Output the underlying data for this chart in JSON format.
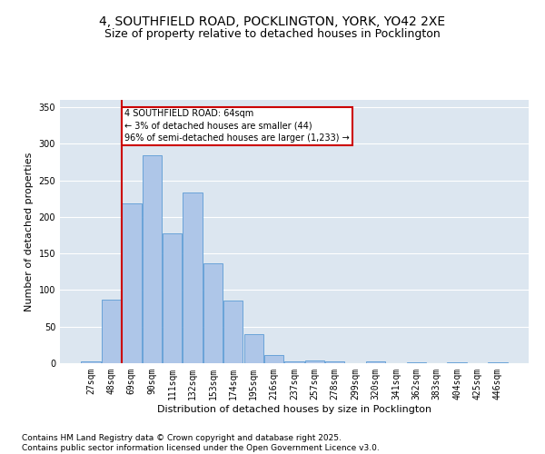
{
  "title_line1": "4, SOUTHFIELD ROAD, POCKLINGTON, YORK, YO42 2XE",
  "title_line2": "Size of property relative to detached houses in Pocklington",
  "xlabel": "Distribution of detached houses by size in Pocklington",
  "ylabel": "Number of detached properties",
  "categories": [
    "27sqm",
    "48sqm",
    "69sqm",
    "90sqm",
    "111sqm",
    "132sqm",
    "153sqm",
    "174sqm",
    "195sqm",
    "216sqm",
    "237sqm",
    "257sqm",
    "278sqm",
    "299sqm",
    "320sqm",
    "341sqm",
    "362sqm",
    "383sqm",
    "404sqm",
    "425sqm",
    "446sqm"
  ],
  "values": [
    2,
    87,
    218,
    284,
    178,
    234,
    136,
    86,
    40,
    11,
    2,
    4,
    3,
    0,
    3,
    0,
    1,
    0,
    1,
    0,
    1
  ],
  "bar_color": "#aec6e8",
  "bar_edge_color": "#5b9bd5",
  "vline_x_index": 2,
  "marker_label_line1": "4 SOUTHFIELD ROAD: 64sqm",
  "marker_label_line2": "← 3% of detached houses are smaller (44)",
  "marker_label_line3": "96% of semi-detached houses are larger (1,233) →",
  "annotation_box_color": "#ffffff",
  "annotation_box_edge": "#cc0000",
  "vline_color": "#cc0000",
  "ylim": [
    0,
    360
  ],
  "yticks": [
    0,
    50,
    100,
    150,
    200,
    250,
    300,
    350
  ],
  "bg_color": "#dce6f0",
  "grid_color": "#ffffff",
  "footer": "Contains HM Land Registry data © Crown copyright and database right 2025.\nContains public sector information licensed under the Open Government Licence v3.0.",
  "title_fontsize": 10,
  "subtitle_fontsize": 9,
  "axis_label_fontsize": 8,
  "tick_fontsize": 7,
  "footer_fontsize": 6.5
}
